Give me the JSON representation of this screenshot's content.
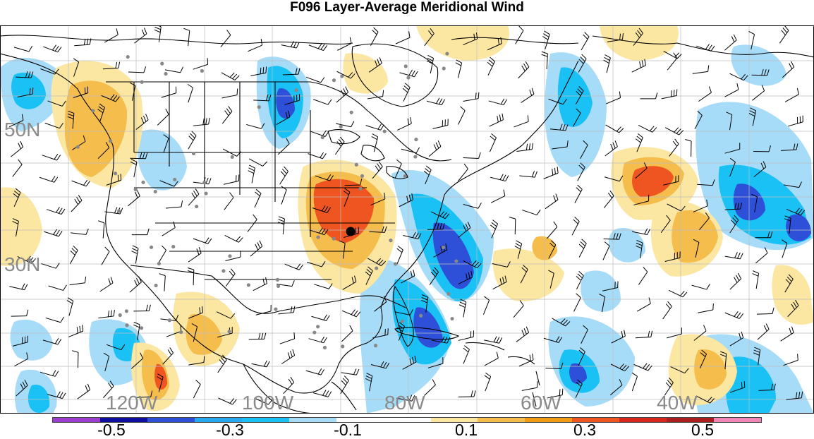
{
  "title": "F096 Layer-Average Meridional Wind",
  "map": {
    "lat_labels": [
      "50N",
      "30N"
    ],
    "lon_labels": [
      "120W",
      "100W",
      "80W",
      "60W",
      "40W"
    ]
  },
  "colorbar": {
    "colors": [
      "#9a3fd0",
      "#0e0ea0",
      "#2e4fd8",
      "#27a9f0",
      "#19c1f4",
      "#a7dcf8",
      "#ffffff",
      "#ffffff",
      "#fbe7a2",
      "#f5bd4c",
      "#f19a13",
      "#ef5521",
      "#d7271f",
      "#ad1f1f",
      "#ef86b5"
    ],
    "tick_labels": [
      "-0.5",
      "-0.3",
      "-0.1",
      "0.1",
      "0.3",
      "0.5"
    ]
  }
}
